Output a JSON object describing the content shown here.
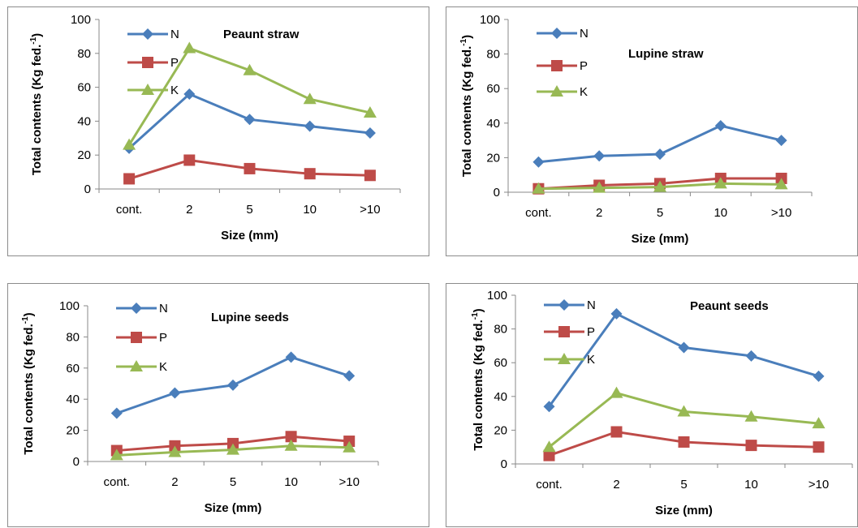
{
  "colors": {
    "N": "#4a7ebb",
    "P": "#be4b48",
    "K": "#98b954"
  },
  "chart_data": [
    {
      "type": "line",
      "title": "Peaunt straw",
      "xlabel": "Size (mm)",
      "ylabel": "Total contents (Kg fed.",
      "ylabel_sup": "-1",
      "ylabel_end": ")",
      "categories": [
        "cont.",
        "2",
        "5",
        "10",
        ">10"
      ],
      "ylim": [
        0,
        100
      ],
      "yticks": [
        "0",
        "20",
        "40",
        "60",
        "80",
        "100"
      ],
      "legend_position": "top-left",
      "series": [
        {
          "name": "N",
          "marker": "diamond",
          "values": [
            24,
            56,
            41,
            37,
            33
          ]
        },
        {
          "name": "P",
          "marker": "square",
          "values": [
            6,
            17,
            12,
            9,
            8
          ]
        },
        {
          "name": "K",
          "marker": "triangle",
          "values": [
            26,
            83,
            70,
            53,
            45
          ]
        }
      ]
    },
    {
      "type": "line",
      "title": "Lupine straw",
      "xlabel": "Size (mm)",
      "ylabel": "Total contents (Kg fed.",
      "ylabel_sup": "-1",
      "ylabel_end": ")",
      "categories": [
        "cont.",
        "2",
        "5",
        "10",
        ">10"
      ],
      "ylim": [
        0,
        100
      ],
      "yticks": [
        "0",
        "20",
        "40",
        "60",
        "80",
        "100"
      ],
      "legend_position": "top-left",
      "series": [
        {
          "name": "N",
          "marker": "diamond",
          "values": [
            17.5,
            21,
            22,
            38.5,
            30
          ]
        },
        {
          "name": "P",
          "marker": "square",
          "values": [
            2,
            4,
            5,
            8,
            8
          ]
        },
        {
          "name": "K",
          "marker": "triangle",
          "values": [
            2,
            2.5,
            3,
            5,
            4.5
          ]
        }
      ]
    },
    {
      "type": "line",
      "title": "Lupine seeds",
      "xlabel": "Size (mm)",
      "ylabel": "Total contents (Kg fed.",
      "ylabel_sup": "-1",
      "ylabel_end": ")",
      "categories": [
        "cont.",
        "2",
        "5",
        "10",
        ">10"
      ],
      "ylim": [
        0,
        100
      ],
      "yticks": [
        "0",
        "20",
        "40",
        "60",
        "80",
        "100"
      ],
      "legend_position": "top-left",
      "series": [
        {
          "name": "N",
          "marker": "diamond",
          "values": [
            31,
            44,
            49,
            67,
            55
          ]
        },
        {
          "name": "P",
          "marker": "square",
          "values": [
            7,
            10,
            11.5,
            16,
            13
          ]
        },
        {
          "name": "K",
          "marker": "triangle",
          "values": [
            4,
            6,
            7.5,
            10,
            9
          ]
        }
      ]
    },
    {
      "type": "line",
      "title": "Peaunt seeds",
      "xlabel": "Size (mm)",
      "ylabel": "Total contents (Kg fed.",
      "ylabel_sup": "-1",
      "ylabel_end": ")",
      "categories": [
        "cont.",
        "2",
        "5",
        "10",
        ">10"
      ],
      "ylim": [
        0,
        100
      ],
      "yticks": [
        "0",
        "20",
        "40",
        "60",
        "80",
        "100"
      ],
      "legend_position": "top-left",
      "series": [
        {
          "name": "N",
          "marker": "diamond",
          "values": [
            34,
            89,
            69,
            64,
            52
          ]
        },
        {
          "name": "P",
          "marker": "square",
          "values": [
            5,
            19,
            13,
            11,
            10
          ]
        },
        {
          "name": "K",
          "marker": "triangle",
          "values": [
            10,
            42,
            31,
            28,
            24
          ]
        }
      ]
    }
  ]
}
